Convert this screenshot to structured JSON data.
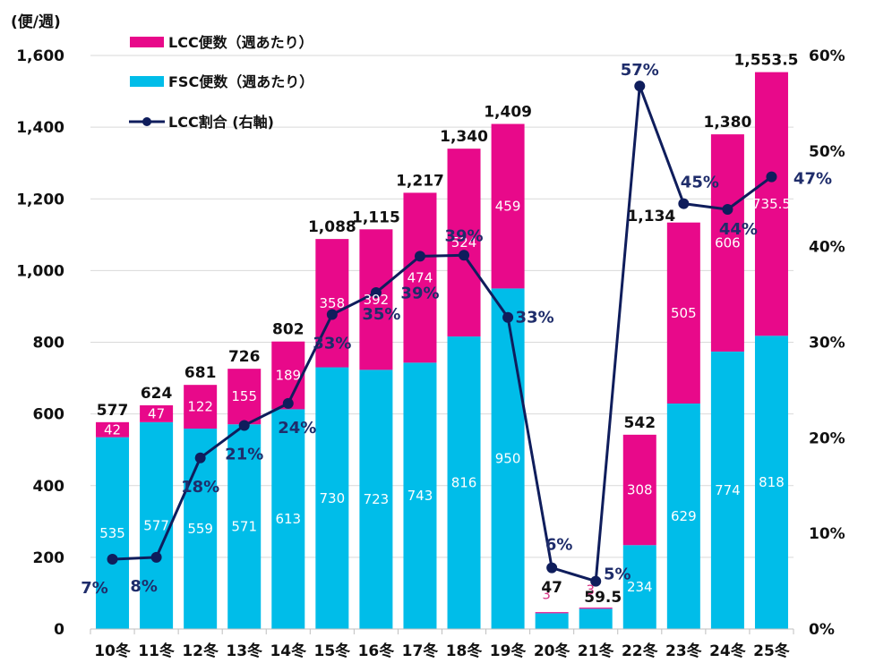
{
  "chart_data": {
    "type": "bar",
    "stacked": true,
    "title": "",
    "ylabel": "(便/週)",
    "y2label": "",
    "xlabel": "",
    "ylim": [
      0,
      1600
    ],
    "yticks": [
      0,
      200,
      400,
      600,
      800,
      1000,
      1200,
      1400,
      1600
    ],
    "ytick_labels": [
      "0",
      "200",
      "400",
      "600",
      "800",
      "1,000",
      "1,200",
      "1,400",
      "1,600"
    ],
    "y2lim": [
      0,
      60
    ],
    "y2ticks": [
      0,
      10,
      20,
      30,
      40,
      50,
      60
    ],
    "y2tick_labels": [
      "0%",
      "10%",
      "20%",
      "30%",
      "40%",
      "50%",
      "60%"
    ],
    "grid": true,
    "legend_position": "top-left",
    "categories": [
      "10冬",
      "11冬",
      "12冬",
      "13冬",
      "14冬",
      "15冬",
      "16冬",
      "17冬",
      "18冬",
      "19冬",
      "20冬",
      "21冬",
      "22冬",
      "23冬",
      "24冬",
      "25冬"
    ],
    "series": [
      {
        "name": "FSC便数（週あたり）",
        "kind": "bar",
        "axis": "left",
        "color": "#00bde9",
        "values": [
          535,
          577,
          559,
          571,
          613,
          730,
          723,
          743,
          816,
          950,
          44,
          56.5,
          234,
          629,
          774,
          818
        ],
        "labels": [
          "535",
          "577",
          "559",
          "571",
          "613",
          "730",
          "723",
          "743",
          "816",
          "950",
          "44",
          "56.5",
          "234",
          "629",
          "774",
          "818"
        ]
      },
      {
        "name": "LCC便数（週あたり）",
        "kind": "bar",
        "axis": "left",
        "color": "#e8098a",
        "values": [
          42,
          47,
          122,
          155,
          189,
          358,
          392,
          474,
          524,
          459,
          3,
          3,
          308,
          505,
          606,
          735.5
        ],
        "labels": [
          "42",
          "47",
          "122",
          "155",
          "189",
          "358",
          "392",
          "474",
          "524",
          "459",
          "3",
          "3",
          "308",
          "505",
          "606",
          "735.5"
        ]
      },
      {
        "name": "LCC割合 (右軸)",
        "kind": "line",
        "axis": "right",
        "color": "#0f1d5c",
        "values": [
          7.3,
          7.5,
          17.9,
          21.3,
          23.6,
          32.9,
          35.2,
          39.0,
          39.1,
          32.6,
          6.4,
          5.0,
          56.8,
          44.5,
          43.9,
          47.3
        ],
        "labels": [
          "7%",
          "8%",
          "18%",
          "21%",
          "24%",
          "33%",
          "35%",
          "39%",
          "39%",
          "33%",
          "6%",
          "5%",
          "57%",
          "45%",
          "44%",
          "47%"
        ]
      }
    ],
    "totals": [
      577,
      624,
      681,
      726,
      802,
      1088,
      1115,
      1217,
      1340,
      1409,
      47,
      59.5,
      542,
      1134,
      1380,
      1553.5
    ],
    "total_labels": [
      "577",
      "624",
      "681",
      "726",
      "802",
      "1,088",
      "1,115",
      "1,217",
      "1,340",
      "1,409",
      "47",
      "59.5",
      "542",
      "1,134",
      "1,380",
      "1,553.5"
    ]
  },
  "legend": [
    {
      "label": "LCC便数（週あたり）",
      "type": "bar",
      "color": "#e8098a"
    },
    {
      "label": "FSC便数（週あたり）",
      "type": "bar",
      "color": "#00bde9"
    },
    {
      "label": "LCC割合 (右軸)",
      "type": "line",
      "color": "#0f1d5c"
    }
  ]
}
